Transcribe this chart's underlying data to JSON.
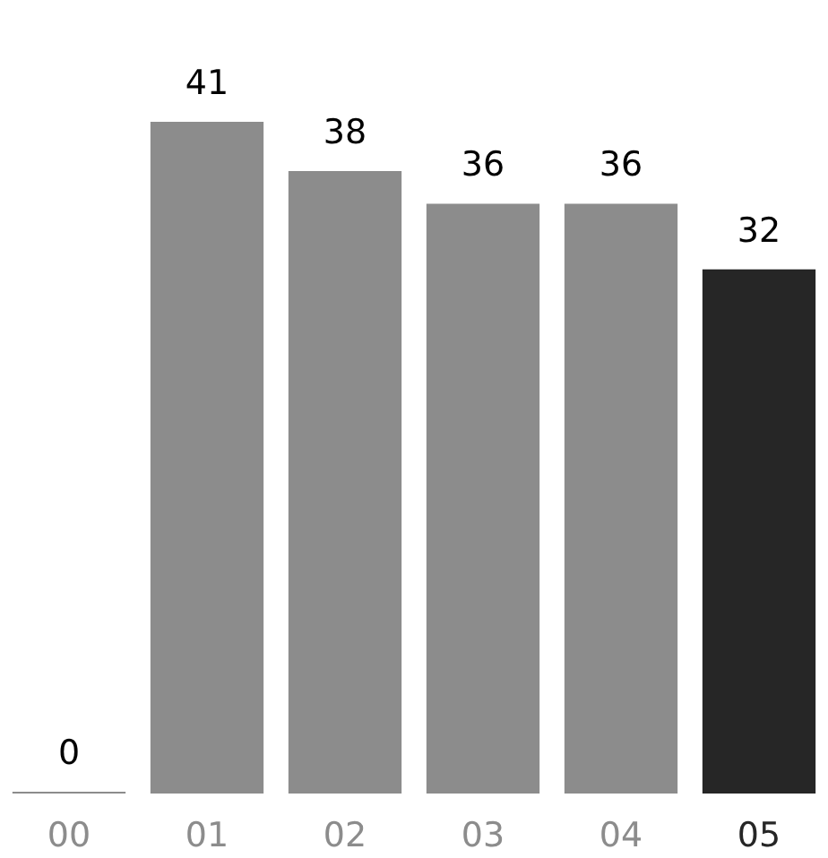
{
  "chart_data": {
    "type": "bar",
    "categories": [
      "00",
      "01",
      "02",
      "03",
      "04",
      "05"
    ],
    "values": [
      0,
      41,
      38,
      36,
      36,
      32
    ],
    "colors": [
      "#8c8c8c",
      "#8c8c8c",
      "#8c8c8c",
      "#8c8c8c",
      "#8c8c8c",
      "#262626"
    ],
    "data_labels": true
  }
}
